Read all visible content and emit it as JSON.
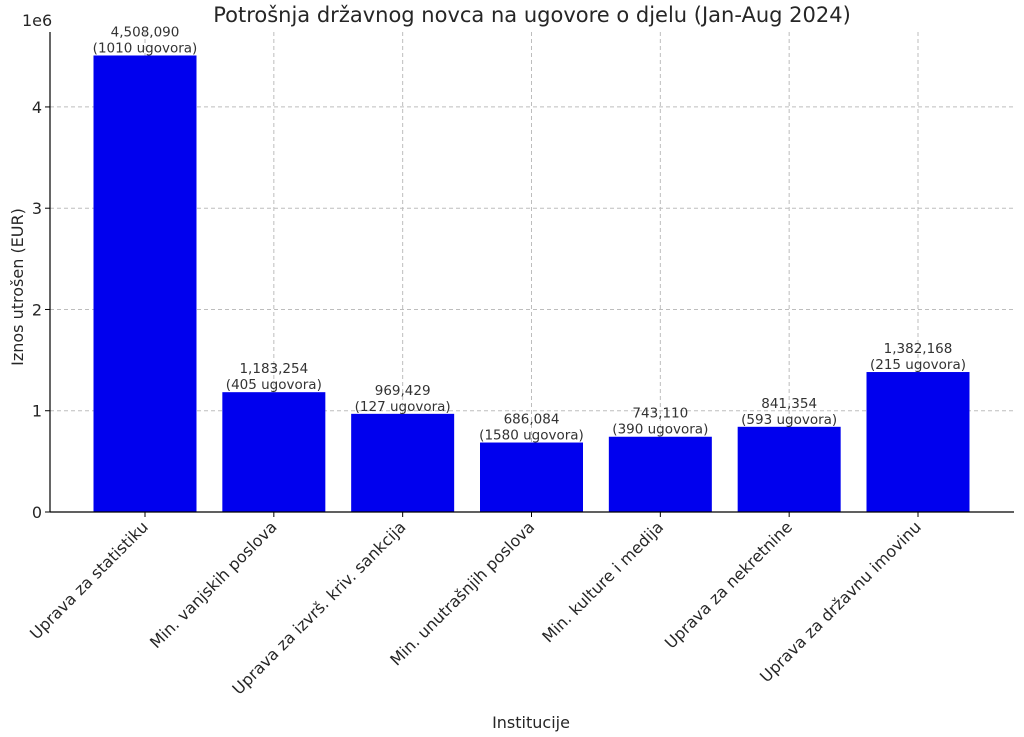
{
  "chart_data": {
    "type": "bar",
    "title": "Potrošnja državnog novca na ugovore o djelu (Jan-Aug 2024)",
    "xlabel": "Institucije",
    "ylabel": "Iznos utrošen (EUR)",
    "y_scale_label": "1e6",
    "ylim": [
      0,
      4740000
    ],
    "y_ticks": [
      0,
      1000000,
      2000000,
      3000000,
      4000000
    ],
    "y_tick_labels": [
      "0",
      "1",
      "2",
      "3",
      "4"
    ],
    "grid": true,
    "bar_color": "#0000ee",
    "categories": [
      "Uprava za statistiku",
      "Min. vanjskih poslova",
      "Uprava za izvrš. kriv. sankcija",
      "Min. unutrašnjih poslova",
      "Min. kulture i medija",
      "Uprava za nekretnine",
      "Uprava za državnu imovinu"
    ],
    "values": [
      4508090,
      1183254,
      969429,
      686084,
      743110,
      841354,
      1382168
    ],
    "value_labels": [
      "4,508,090",
      "1,183,254",
      "969,429",
      "686,084",
      "743,110",
      "841,354",
      "1,382,168"
    ],
    "contract_labels": [
      "(1010 ugovora)",
      "(405 ugovora)",
      "(127 ugovora)",
      "(1580 ugovora)",
      "(390 ugovora)",
      "(593 ugovora)",
      "(215 ugovora)"
    ]
  }
}
